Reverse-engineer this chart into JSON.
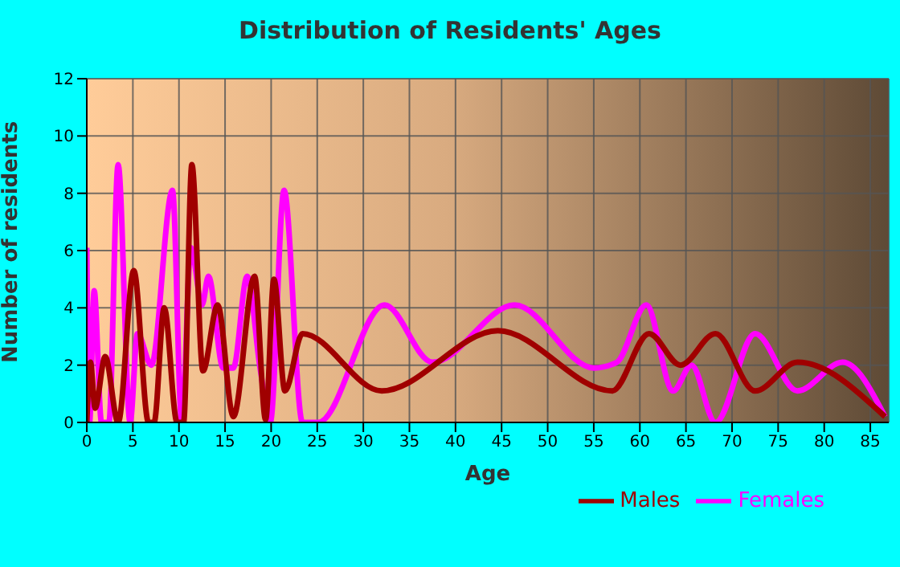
{
  "chart_data": {
    "type": "line",
    "title": "Distribution of Residents' Ages",
    "xlabel": "Age",
    "ylabel": "Number of residents",
    "xlim": [
      0,
      87
    ],
    "xticks": [
      0,
      5,
      10,
      15,
      20,
      25,
      30,
      35,
      40,
      45,
      50,
      55,
      60,
      65,
      70,
      75,
      80,
      85
    ],
    "ylim": [
      0,
      12
    ],
    "yticks": [
      0,
      2,
      4,
      6,
      8,
      10,
      12
    ],
    "grid": true,
    "legend": "bottom right",
    "marker": "none",
    "line_style": "solid",
    "series": [
      {
        "name": "Males",
        "color": "#a00000",
        "x": [
          0,
          0.4,
          0.9,
          2,
          3.4,
          5.1,
          6.7,
          7.3,
          8.4,
          9.8,
          10.5,
          11.4,
          12.6,
          14.2,
          15.9,
          18.2,
          19.4,
          20.3,
          21.5,
          23.4,
          32,
          44.6,
          57,
          61,
          64.4,
          68.2,
          72.5,
          77.1,
          86.6
        ],
        "values": [
          0,
          2.1,
          0.5,
          2.3,
          0,
          5.3,
          0,
          0,
          4,
          0,
          0,
          9,
          1.8,
          4.1,
          0.2,
          5.1,
          0.1,
          5,
          1.1,
          3.1,
          1.1,
          3.2,
          1.1,
          3.1,
          2,
          3.1,
          1.1,
          2.1,
          0.2
        ]
      },
      {
        "name": "Females",
        "color": "#ff00ff",
        "x": [
          0,
          0.3,
          0.8,
          1.6,
          2.4,
          3.4,
          4.7,
          5.5,
          7,
          9.3,
          10.3,
          11.3,
          12.5,
          13.2,
          14.8,
          15.9,
          17.4,
          18.8,
          19.9,
          21.4,
          23.4,
          25.1,
          32.3,
          37.5,
          46.4,
          55,
          57.5,
          60.7,
          63.6,
          65.6,
          68.2,
          72.5,
          77.1,
          82,
          86.6
        ],
        "values": [
          6.1,
          0,
          4.6,
          0,
          0,
          9,
          0,
          3.1,
          2,
          8.1,
          0,
          6.1,
          4.1,
          5.1,
          1.9,
          1.9,
          5.1,
          1.9,
          0,
          8.1,
          0,
          0,
          4.1,
          2.1,
          4.1,
          1.9,
          2.1,
          4.1,
          1.1,
          2,
          0,
          3.1,
          1.1,
          2.1,
          0.2
        ]
      }
    ]
  }
}
